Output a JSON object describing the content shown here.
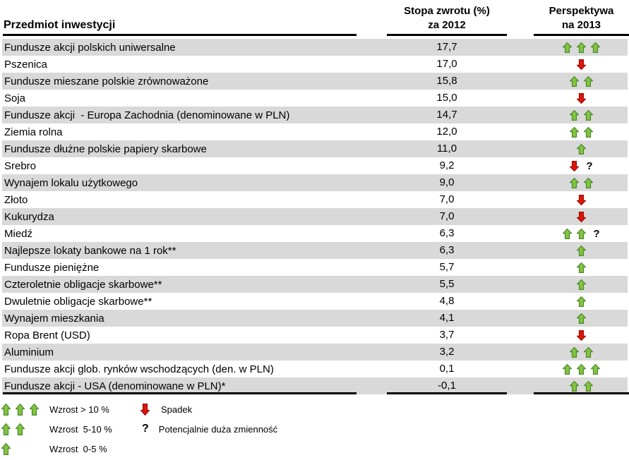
{
  "table": {
    "columns": {
      "item": "Przedmiot inwestycji",
      "return_line1": "Stopa zwrotu (%)",
      "return_line2": "za 2012",
      "outlook_line1": "Perspektywa",
      "outlook_line2": "na 2013"
    },
    "rows": [
      {
        "name": "Fundusze akcji polskich uniwersalne",
        "value": "17,7",
        "outlook": "up3",
        "question": false
      },
      {
        "name": "Pszenica",
        "value": "17,0",
        "outlook": "down",
        "question": false
      },
      {
        "name": "Fundusze mieszane polskie zrównoważone",
        "value": "15,8",
        "outlook": "up2",
        "question": false
      },
      {
        "name": "Soja",
        "value": "15,0",
        "outlook": "down",
        "question": false
      },
      {
        "name": "Fundusze akcji  - Europa Zachodnia (denominowane w PLN)",
        "value": "14,7",
        "outlook": "up2",
        "question": false
      },
      {
        "name": "Ziemia rolna",
        "value": "12,0",
        "outlook": "up2",
        "question": false
      },
      {
        "name": "Fundusze dłużne polskie papiery skarbowe",
        "value": "11,0",
        "outlook": "up1",
        "question": false
      },
      {
        "name": "Srebro",
        "value": "9,2",
        "outlook": "down",
        "question": true
      },
      {
        "name": "Wynajem lokalu użytkowego",
        "value": "9,0",
        "outlook": "up2",
        "question": false
      },
      {
        "name": "Złoto",
        "value": "7,0",
        "outlook": "down",
        "question": false
      },
      {
        "name": "Kukurydza",
        "value": "7,0",
        "outlook": "down",
        "question": false
      },
      {
        "name": "Miedź",
        "value": "6,3",
        "outlook": "up2",
        "question": true
      },
      {
        "name": "Najlepsze lokaty bankowe na 1 rok**",
        "value": "6,3",
        "outlook": "up1",
        "question": false
      },
      {
        "name": "Fundusze pieniężne",
        "value": "5,7",
        "outlook": "up1",
        "question": false
      },
      {
        "name": "Czteroletnie obligacje skarbowe**",
        "value": "5,5",
        "outlook": "up1",
        "question": false
      },
      {
        "name": "Dwuletnie obligacje skarbowe**",
        "value": "4,8",
        "outlook": "up1",
        "question": false
      },
      {
        "name": "Wynajem mieszkania",
        "value": "4,1",
        "outlook": "up1",
        "question": false
      },
      {
        "name": "Ropa Brent (USD)",
        "value": "3,7",
        "outlook": "down",
        "question": false
      },
      {
        "name": "Aluminium",
        "value": "3,2",
        "outlook": "up2",
        "question": false
      },
      {
        "name": "Fundusze akcji glob. rynków wschodzących (den. w PLN)",
        "value": "0,1",
        "outlook": "up3",
        "question": false
      },
      {
        "name": "Fundusze akcji - USA (denominowane w PLN)*",
        "value": "-0,1",
        "outlook": "up2",
        "question": false
      }
    ]
  },
  "legend": {
    "growth_items": [
      {
        "arrows": "up3",
        "label": "Wzrost > 10 %"
      },
      {
        "arrows": "up2",
        "label": "Wzrost  5-10 %"
      },
      {
        "arrows": "up1",
        "label": "Wzrost  0-5 %"
      }
    ],
    "other_items": [
      {
        "symbol": "down",
        "label": "Spadek"
      },
      {
        "symbol": "question",
        "label": "Potencjalnie duża zmienność"
      }
    ],
    "question_glyph": "?"
  },
  "colors": {
    "row_alt": "#D9D9D9",
    "arrow_up_fill": "#82C341",
    "arrow_up_stroke": "#4C8A2E",
    "arrow_down_fill": "#DE1508",
    "arrow_down_stroke": "#9B0F06",
    "rule": "#000000"
  }
}
